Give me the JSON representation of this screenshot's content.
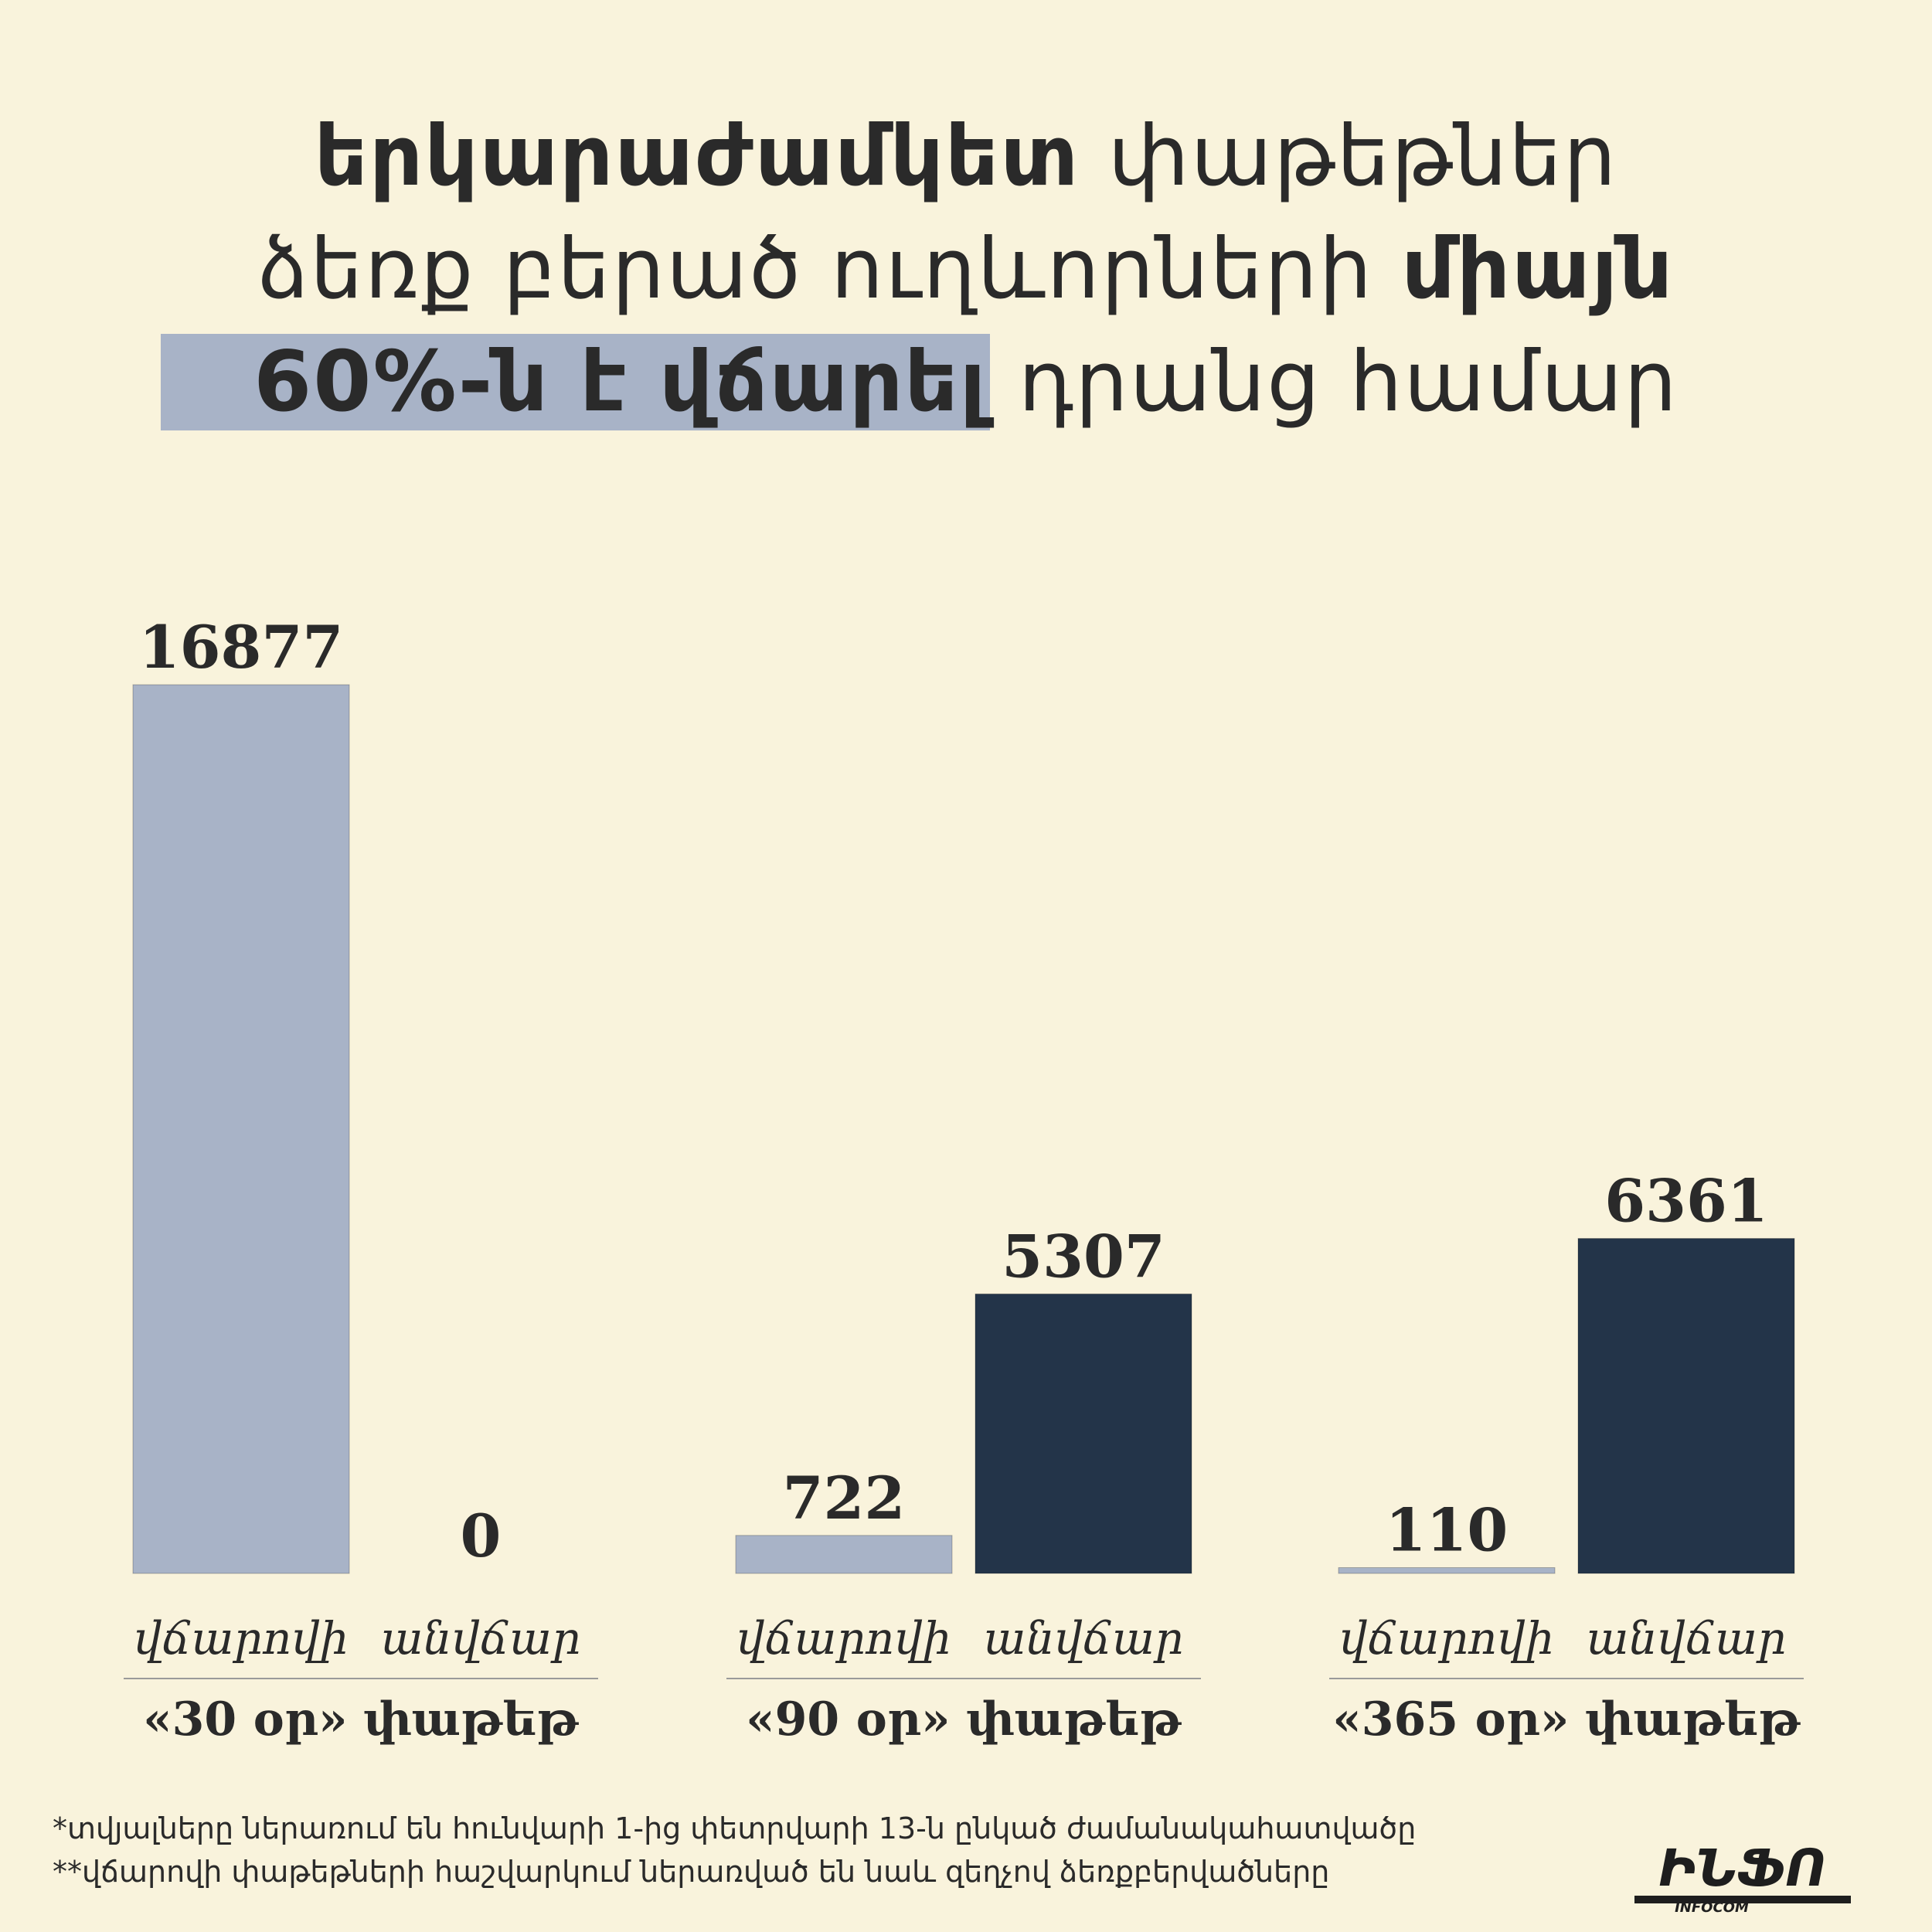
{
  "title": {
    "p1": "երկարաժամկետ",
    "p2": "փաթեթներ",
    "p3": "ձեռք բերած ուղևորների",
    "p4": "միայն",
    "p5": "60%-ն է վճարել",
    "p6": "դրանց համար"
  },
  "chart_data": {
    "type": "bar",
    "title": "երկարաժամկետ փաթեթներ ձեռք բերած ուղևորների միայն 60%-ն է վճարել դրանց համար",
    "groups": [
      {
        "label": "«30 օր» փաթեթ",
        "bars": [
          {
            "category": "վճարովի",
            "value": 16877
          },
          {
            "category": "անվճար",
            "value": 0
          }
        ]
      },
      {
        "label": "«90 օր» փաթեթ",
        "bars": [
          {
            "category": "վճարովի",
            "value": 722
          },
          {
            "category": "անվճար",
            "value": 5307
          }
        ]
      },
      {
        "label": "«365 օր» փաթեթ",
        "bars": [
          {
            "category": "վճարովի",
            "value": 110
          },
          {
            "category": "անվճար",
            "value": 6361
          }
        ]
      }
    ],
    "colors": {
      "վճարովի": "#a8b3c7",
      "անվճար": "#233449"
    },
    "ylim": [
      0,
      16877
    ],
    "grid": false,
    "legend": "none"
  },
  "footnotes": {
    "note1": "*տվյալները ներառում են հունվարի 1-ից փետրվարի 13-ն ընկած ժամանակահատվածը",
    "note2": "**վճարովի փաթեթների հաշվարկում ներառված են նաև զեղչով ձեռքբերվածները"
  },
  "logo": {
    "main": "ԻՆՖՈ",
    "sub": "INFOCOM"
  }
}
